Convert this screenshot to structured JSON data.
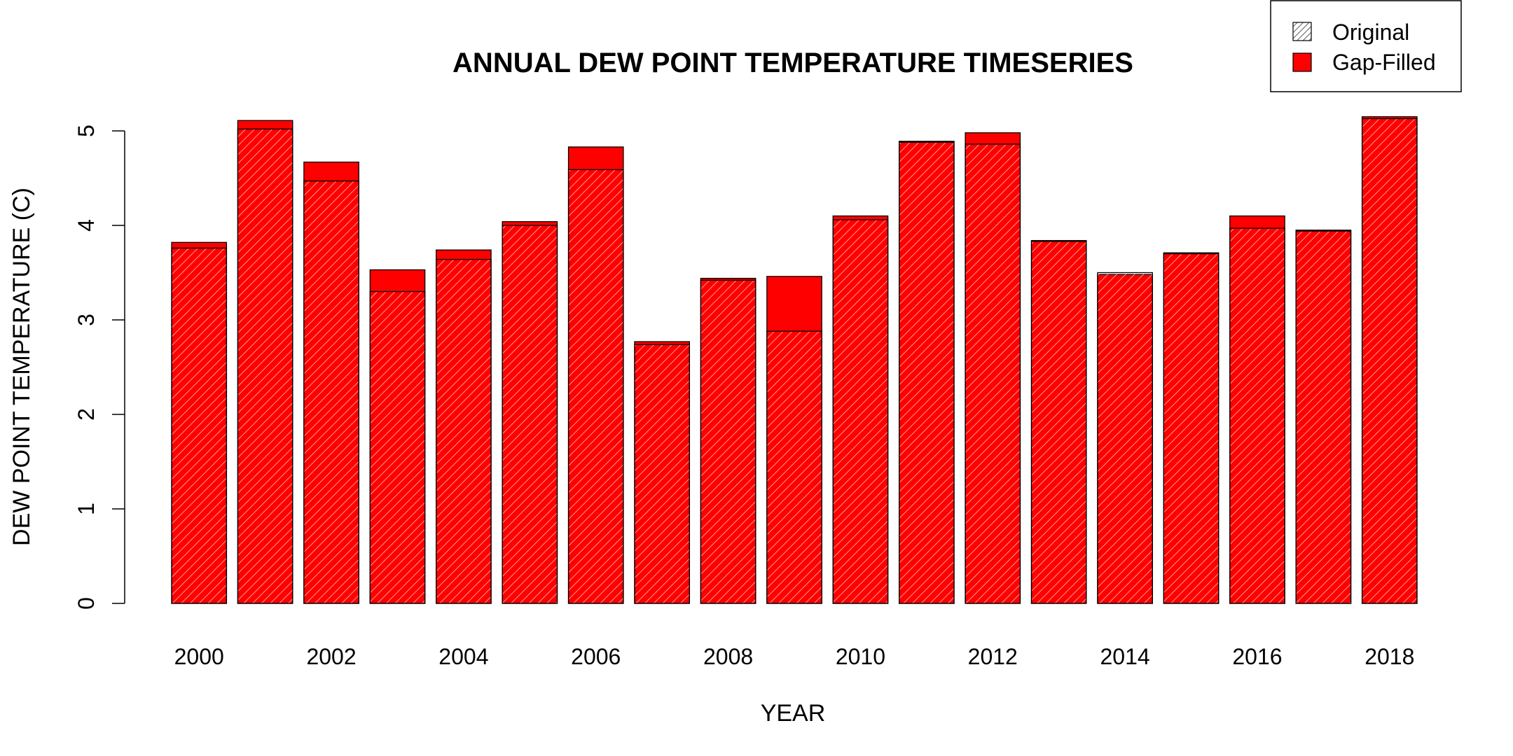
{
  "chart_data": {
    "type": "bar",
    "title": "ANNUAL DEW POINT TEMPERATURE TIMESERIES",
    "xlabel": "YEAR",
    "ylabel": "DEW POINT TEMPERATURE (C)",
    "ylim": [
      0,
      5.2
    ],
    "yticks": [
      0,
      1,
      2,
      3,
      4,
      5
    ],
    "categories": [
      "2000",
      "2001",
      "2002",
      "2003",
      "2004",
      "2005",
      "2006",
      "2007",
      "2008",
      "2009",
      "2010",
      "2011",
      "2012",
      "2013",
      "2014",
      "2015",
      "2016",
      "2017",
      "2018"
    ],
    "xtick_labels": [
      "2000",
      "",
      "2002",
      "",
      "2004",
      "",
      "2006",
      "",
      "2008",
      "",
      "2010",
      "",
      "2012",
      "",
      "2014",
      "",
      "2016",
      "",
      "2018"
    ],
    "series": [
      {
        "name": "Original",
        "style": "hatched",
        "values": [
          3.76,
          5.02,
          4.47,
          3.3,
          3.64,
          4.0,
          4.59,
          2.74,
          3.42,
          2.88,
          4.06,
          4.88,
          4.86,
          3.83,
          3.5,
          3.7,
          3.97,
          3.94,
          5.13
        ]
      },
      {
        "name": "Gap-Filled",
        "style": "solid",
        "values": [
          3.82,
          5.11,
          4.67,
          3.53,
          3.74,
          4.04,
          4.83,
          2.77,
          3.44,
          3.46,
          4.1,
          4.89,
          4.98,
          3.84,
          3.48,
          3.71,
          4.1,
          3.95,
          5.15
        ]
      }
    ],
    "grid": false,
    "legend_position": "top-right",
    "colors": {
      "fill": "#ff0000",
      "hatch": "#ffffff",
      "outline": "#000000"
    }
  }
}
